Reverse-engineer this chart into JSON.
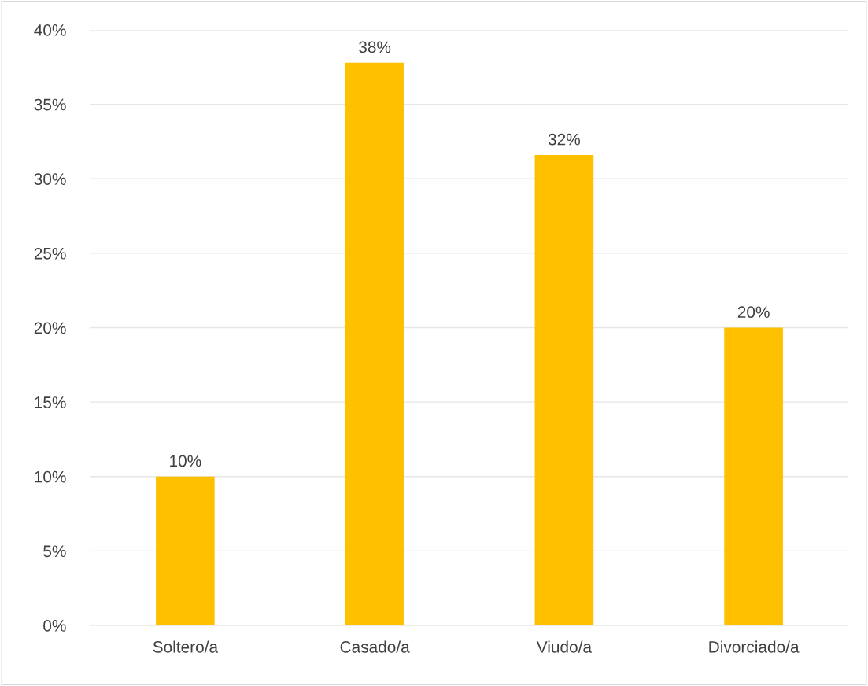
{
  "chart_data": {
    "type": "bar",
    "categories": [
      "Soltero/a",
      "Casado/a",
      "Viudo/a",
      "Divorciado/a"
    ],
    "values": [
      10,
      37.8,
      31.6,
      20
    ],
    "value_labels": [
      "10%",
      "38%",
      "32%",
      "20%"
    ],
    "color": "#ffc000",
    "ylim": [
      0,
      40
    ],
    "yticks": [
      {
        "value": 0,
        "label": "0%"
      },
      {
        "value": 5,
        "label": "5%"
      },
      {
        "value": 10,
        "label": "10%"
      },
      {
        "value": 15,
        "label": "15%"
      },
      {
        "value": 20,
        "label": "20%"
      },
      {
        "value": 25,
        "label": "25%"
      },
      {
        "value": 30,
        "label": "30%"
      },
      {
        "value": 35,
        "label": "35%"
      },
      {
        "value": 40,
        "label": "40%"
      }
    ],
    "grid": "y"
  }
}
